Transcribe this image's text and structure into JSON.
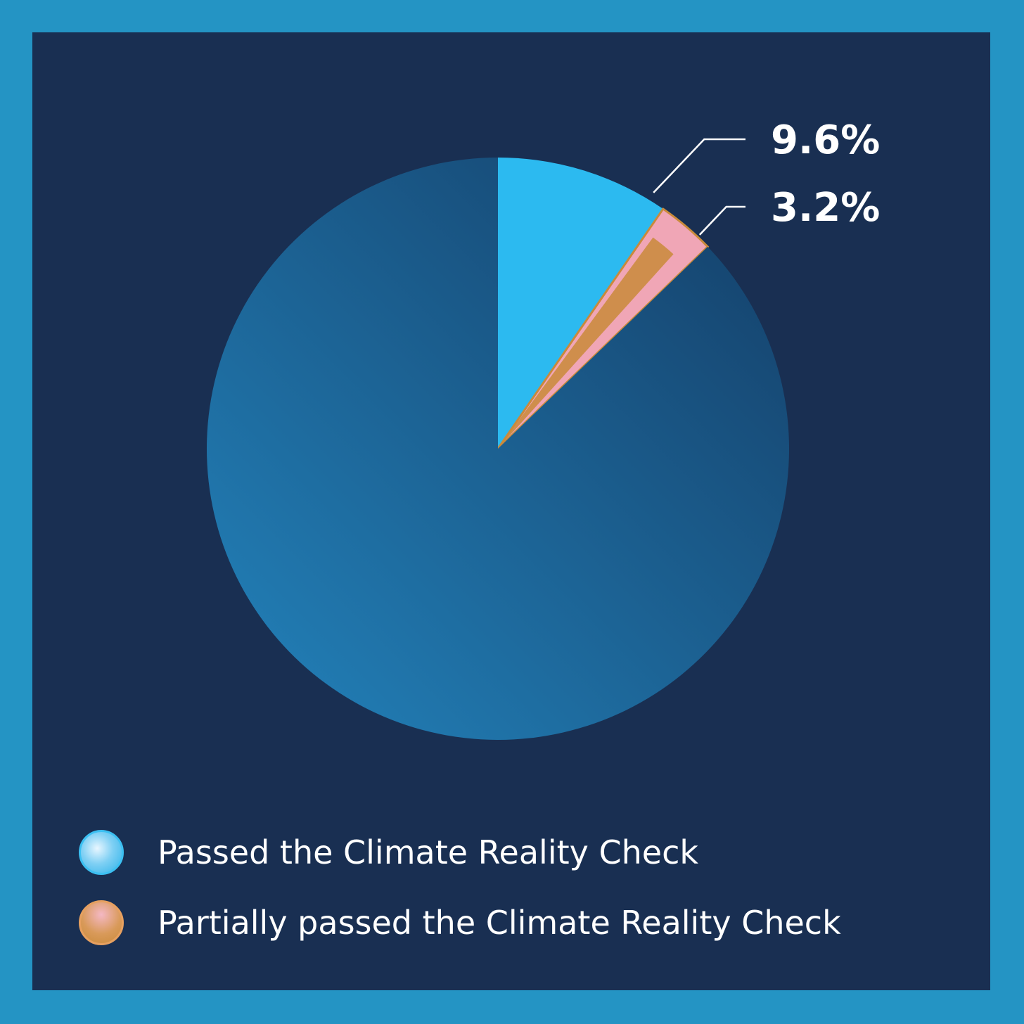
{
  "chart_data": {
    "type": "pie",
    "start_angle_deg": 0,
    "direction": "clockwise",
    "slices": [
      {
        "label": "Passed the Climate Reality Check",
        "value": 9.6,
        "display": "9.6%",
        "color": "#2cbaf0"
      },
      {
        "label": "Partially passed the Climate Reality Check",
        "value": 3.2,
        "display": "3.2%",
        "color": "#f0a6b6"
      },
      {
        "label": "",
        "value": 87.2,
        "display": "",
        "color": "#1d6ea3"
      }
    ],
    "legend": {
      "placement": "bottom-left",
      "items": [
        {
          "label": "Passed the Climate Reality Check",
          "color": "#2cbaf0"
        },
        {
          "label": "Partially passed the Climate Reality Check",
          "color": "#d4904a"
        }
      ]
    }
  },
  "colors": {
    "border": "#2494c4",
    "background": "#192f52",
    "remainder_light": "#2384bd",
    "remainder_dark": "#143d66",
    "partial_accent": "#c98a3a"
  }
}
